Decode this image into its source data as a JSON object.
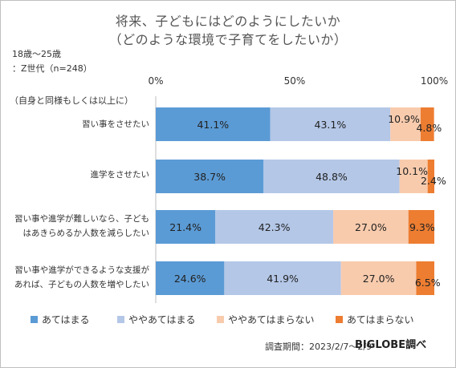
{
  "title_line1": "将来、子どもにはどのようにしたいか",
  "title_line2": "（どのような環境で子育てをしたいか）",
  "meta_line1": "18歳～25歳",
  "meta_line2": "：Z世代（n=248）",
  "axis_note": "（自身と同様もしくは以上に）",
  "ticks": [
    "0%",
    "50%",
    "100%"
  ],
  "footer_period": "調査期間：2023/2/7～2/9",
  "footer_brand": "BIGLOBE調べ",
  "colors": {
    "s1": "#5b9bd5",
    "s2": "#b4c7e7",
    "s3": "#f8cbad",
    "s4": "#ed7d31"
  },
  "chart_data": {
    "type": "bar",
    "stacked": true,
    "orientation": "horizontal",
    "xlim": [
      0,
      100
    ],
    "categories": [
      [
        "習い事をさせたい"
      ],
      [
        "進学をさせたい"
      ],
      [
        "習い事や進学が難しいなら、子ども",
        "はあきらめるか人数を減らしたい"
      ],
      [
        "習い事や進学ができるような支援が",
        "あれば、子どもの人数を増やしたい"
      ]
    ],
    "series": [
      {
        "name": "あてはまる",
        "values": [
          41.1,
          38.7,
          21.4,
          24.6
        ],
        "labels": [
          "41.1%",
          "38.7%",
          "21.4%",
          "24.6%"
        ]
      },
      {
        "name": "ややあてはまる",
        "values": [
          43.1,
          48.8,
          42.3,
          41.9
        ],
        "labels": [
          "43.1%",
          "48.8%",
          "42.3%",
          "41.9%"
        ]
      },
      {
        "name": "ややあてはまらない",
        "values": [
          10.9,
          10.1,
          27.0,
          27.0
        ],
        "labels": [
          "10.9%",
          "10.1%",
          "27.0%",
          "27.0%"
        ]
      },
      {
        "name": "あてはまらない",
        "values": [
          4.8,
          2.4,
          9.3,
          6.5
        ],
        "labels": [
          "4.8%",
          "2.4%",
          "9.3%",
          "6.5%"
        ]
      }
    ]
  }
}
